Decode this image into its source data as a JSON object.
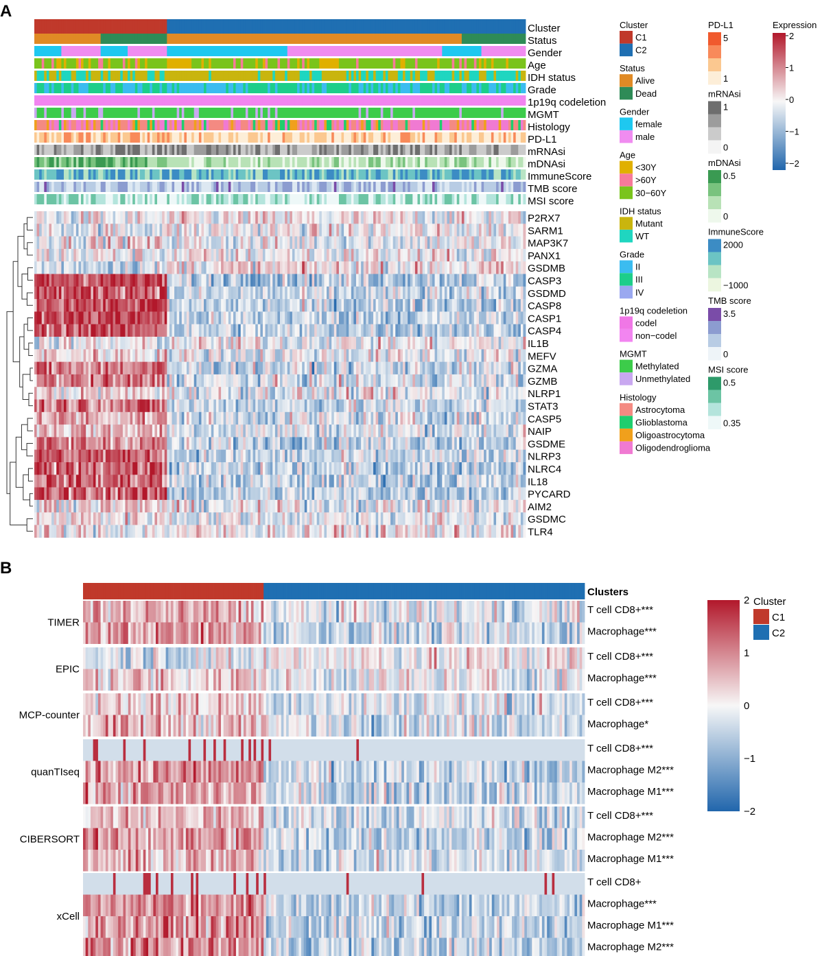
{
  "panel_a": {
    "letter": "A",
    "annotation_tracks": [
      "Cluster",
      "Status",
      "Gender",
      "Age",
      "IDH status",
      "Grade",
      "1p19q codeletion",
      "MGMT",
      "Histology",
      "PD-L1",
      "mRNAsi",
      "mDNAsi",
      "ImmuneScore",
      "TMB score",
      "MSI score"
    ],
    "genes": [
      "P2RX7",
      "SARM1",
      "MAP3K7",
      "PANX1",
      "GSDMB",
      "CASP3",
      "GSDMD",
      "CASP8",
      "CASP1",
      "CASP4",
      "IL1B",
      "MEFV",
      "GZMA",
      "GZMB",
      "NLRP1",
      "STAT3",
      "CASP5",
      "NAIP",
      "GSDME",
      "NLRP3",
      "NLRC4",
      "IL18",
      "PYCARD",
      "AIM2",
      "GSDMC",
      "TLR4"
    ],
    "legends_col1": [
      {
        "title": "Cluster",
        "items": [
          {
            "label": "C1",
            "color": "#c0392b"
          },
          {
            "label": "C2",
            "color": "#1f6fb2"
          }
        ]
      },
      {
        "title": "Status",
        "items": [
          {
            "label": "Alive",
            "color": "#e08a25"
          },
          {
            "label": "Dead",
            "color": "#2e8b57"
          }
        ]
      },
      {
        "title": "Gender",
        "items": [
          {
            "label": "female",
            "color": "#1ec8f0"
          },
          {
            "label": "male",
            "color": "#f08cf0"
          }
        ]
      },
      {
        "title": "Age",
        "items": [
          {
            "label": "<30Y",
            "color": "#e0b000"
          },
          {
            "label": ">60Y",
            "color": "#f77a9a"
          },
          {
            "label": "30−60Y",
            "color": "#7ac41c"
          }
        ]
      },
      {
        "title": "IDH status",
        "items": [
          {
            "label": "Mutant",
            "color": "#c9b50e"
          },
          {
            "label": "WT",
            "color": "#1fd6c0"
          }
        ]
      },
      {
        "title": "Grade",
        "items": [
          {
            "label": "II",
            "color": "#3bbcf0"
          },
          {
            "label": "III",
            "color": "#1dce8a"
          },
          {
            "label": "IV",
            "color": "#9aa8f0"
          }
        ]
      },
      {
        "title": "1p19q codeletion",
        "items": [
          {
            "label": "codel",
            "color": "#f077e6"
          },
          {
            "label": "non−codel",
            "color": "#f285f0"
          }
        ]
      },
      {
        "title": "MGMT",
        "items": [
          {
            "label": "Methylated",
            "color": "#3ccc4a"
          },
          {
            "label": "Unmethylated",
            "color": "#c9a8f0"
          }
        ]
      },
      {
        "title": "Histology",
        "items": [
          {
            "label": "Astrocytoma",
            "color": "#f48a82"
          },
          {
            "label": "Glioblastoma",
            "color": "#1fce6e"
          },
          {
            "label": "Oligoastrocytoma",
            "color": "#f0a01c"
          },
          {
            "label": "Oligodendroglioma",
            "color": "#f07ad2"
          }
        ]
      }
    ],
    "legends_col2": [
      {
        "title": "PD-L1",
        "ticks": [
          "5",
          "1"
        ],
        "colors": [
          "#f05a2e",
          "#f88a5a",
          "#fbc890",
          "#fdeed8"
        ]
      },
      {
        "title": "mRNAsi",
        "ticks": [
          "1",
          "0"
        ],
        "colors": [
          "#6e6e6e",
          "#9c9c9c",
          "#cbcbcb",
          "#f4f4f4"
        ]
      },
      {
        "title": "mDNAsi",
        "ticks": [
          "0.5",
          "0"
        ],
        "colors": [
          "#3a9a52",
          "#79c37e",
          "#b8e2b6",
          "#eef8ec"
        ]
      },
      {
        "title": "ImmuneScore",
        "ticks": [
          "2000",
          "−1000"
        ],
        "colors": [
          "#3c8cc4",
          "#6cc4c4",
          "#b8e4c4",
          "#ecf6e0"
        ]
      },
      {
        "title": "TMB score",
        "ticks": [
          "3.5",
          "0"
        ],
        "colors": [
          "#7a4ca8",
          "#8c9cd0",
          "#b8cce4",
          "#eef4f8"
        ]
      },
      {
        "title": "MSI score",
        "ticks": [
          "0.5",
          "0.35"
        ],
        "colors": [
          "#2e9a6a",
          "#6cc4a4",
          "#b4e4dc",
          "#eef8f8"
        ]
      }
    ],
    "expression_legend": {
      "title": "Expression",
      "ticks": [
        "2",
        "1",
        "0",
        "−1",
        "−2"
      ]
    }
  },
  "panel_b": {
    "letter": "B",
    "top_label": "Clusters",
    "groups": [
      {
        "method": "TIMER",
        "rows": [
          "T cell CD8+***",
          "Macrophage***"
        ]
      },
      {
        "method": "EPIC",
        "rows": [
          "T cell CD8+***",
          "Macrophage***"
        ]
      },
      {
        "method": "MCP-counter",
        "rows": [
          "T cell CD8+***",
          "Macrophage*"
        ]
      },
      {
        "method": "quanTIseq",
        "rows": [
          "T cell CD8+***",
          "Macrophage M2***",
          "Macrophage M1***"
        ]
      },
      {
        "method": "CIBERSORT",
        "rows": [
          "T cell CD8+***",
          "Macrophage M2***",
          "Macrophage M1***"
        ]
      },
      {
        "method": "xCell",
        "rows": [
          "T cell CD8+",
          "Macrophage***",
          "Macrophage M1***",
          "Macrophage M2***"
        ]
      }
    ],
    "scale_ticks": [
      "2",
      "1",
      "0",
      "−1",
      "−2"
    ],
    "cluster_legend": {
      "title": "Cluster",
      "items": [
        {
          "label": "C1",
          "color": "#c0392b"
        },
        {
          "label": "C2",
          "color": "#1f6fb2"
        }
      ]
    }
  },
  "chart_data": [
    {
      "type": "heatmap",
      "title": "",
      "rows": [
        "P2RX7",
        "SARM1",
        "MAP3K7",
        "PANX1",
        "GSDMB",
        "CASP3",
        "GSDMD",
        "CASP8",
        "CASP1",
        "CASP4",
        "IL1B",
        "MEFV",
        "GZMA",
        "GZMB",
        "NLRP1",
        "STAT3",
        "CASP5",
        "NAIP",
        "GSDME",
        "NLRP3",
        "NLRC4",
        "IL18",
        "PYCARD",
        "AIM2",
        "GSDMC",
        "TLR4"
      ],
      "columns": "samples ordered by cluster (C1 left ~27%, C2 right ~73%)",
      "value_range": [
        -2,
        2
      ],
      "cluster_fraction_c1": 0.27,
      "mean_zscore_c1": [
        -0.1,
        -0.1,
        0.2,
        0.0,
        -0.3,
        1.6,
        1.5,
        1.6,
        1.6,
        1.5,
        -0.1,
        0.3,
        1.1,
        1.0,
        0.2,
        1.2,
        0.7,
        0.6,
        1.0,
        1.4,
        1.4,
        1.3,
        1.3,
        0.3,
        0.2,
        0.0
      ],
      "mean_zscore_c2": [
        0.0,
        0.0,
        -0.1,
        0.0,
        0.2,
        -0.5,
        -0.5,
        -0.5,
        -0.5,
        -0.5,
        0.0,
        -0.1,
        -0.4,
        -0.3,
        -0.1,
        -0.4,
        -0.3,
        -0.2,
        -0.4,
        -0.5,
        -0.5,
        -0.5,
        -0.5,
        -0.1,
        -0.1,
        0.1
      ],
      "legend_title": "Expression"
    },
    {
      "type": "heatmap",
      "title": "",
      "rows": [
        "T cell CD8+***",
        "Macrophage***",
        "T cell CD8+***",
        "Macrophage***",
        "T cell CD8+***",
        "Macrophage*",
        "T cell CD8+***",
        "Macrophage M2***",
        "Macrophage M1***",
        "T cell CD8+***",
        "Macrophage M2***",
        "Macrophage M1***",
        "T cell CD8+",
        "Macrophage***",
        "Macrophage M1***",
        "Macrophage M2***"
      ],
      "row_groups": [
        "TIMER",
        "TIMER",
        "EPIC",
        "EPIC",
        "MCP-counter",
        "MCP-counter",
        "quanTIseq",
        "quanTIseq",
        "quanTIseq",
        "CIBERSORT",
        "CIBERSORT",
        "CIBERSORT",
        "xCell",
        "xCell",
        "xCell",
        "xCell"
      ],
      "value_range": [
        -2,
        2
      ],
      "cluster_fraction_c1": 0.36,
      "mean_zscore_c1": [
        0.6,
        0.8,
        -0.2,
        0.4,
        0.4,
        0.5,
        0.3,
        0.9,
        0.7,
        0.5,
        0.8,
        0.5,
        0.1,
        1.0,
        0.9,
        0.9
      ],
      "mean_zscore_c2": [
        -0.2,
        -0.4,
        0.1,
        -0.1,
        -0.2,
        -0.2,
        -0.1,
        -0.5,
        -0.4,
        -0.3,
        -0.4,
        -0.3,
        -0.1,
        -0.5,
        -0.5,
        -0.5
      ]
    }
  ]
}
